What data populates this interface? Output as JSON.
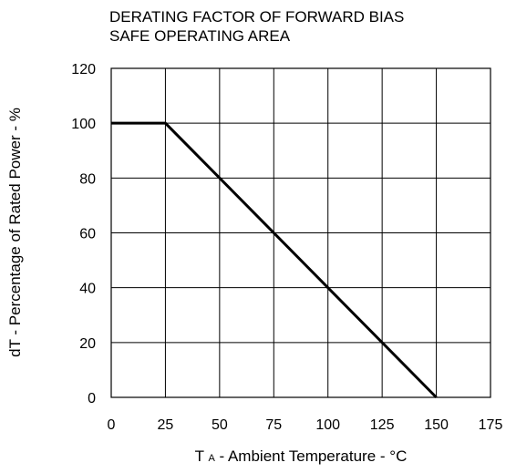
{
  "chart_data": {
    "type": "line",
    "title_lines": [
      "DERATING FACTOR OF FORWARD BIAS",
      "SAFE OPERATING AREA"
    ],
    "ylabel": "dT - Percentage of Rated Power - %",
    "xlabel_sym": "T",
    "xlabel_sub": "A",
    "xlabel_rest": " - Ambient Temperature - °C",
    "xlim": [
      0,
      175
    ],
    "ylim": [
      0,
      120
    ],
    "xticks": [
      0,
      25,
      50,
      75,
      100,
      125,
      150,
      175
    ],
    "yticks": [
      0,
      20,
      40,
      60,
      80,
      100,
      120
    ],
    "grid": true,
    "series": [
      {
        "x": [
          0,
          25,
          150
        ],
        "y": [
          100,
          100,
          0
        ]
      }
    ]
  }
}
